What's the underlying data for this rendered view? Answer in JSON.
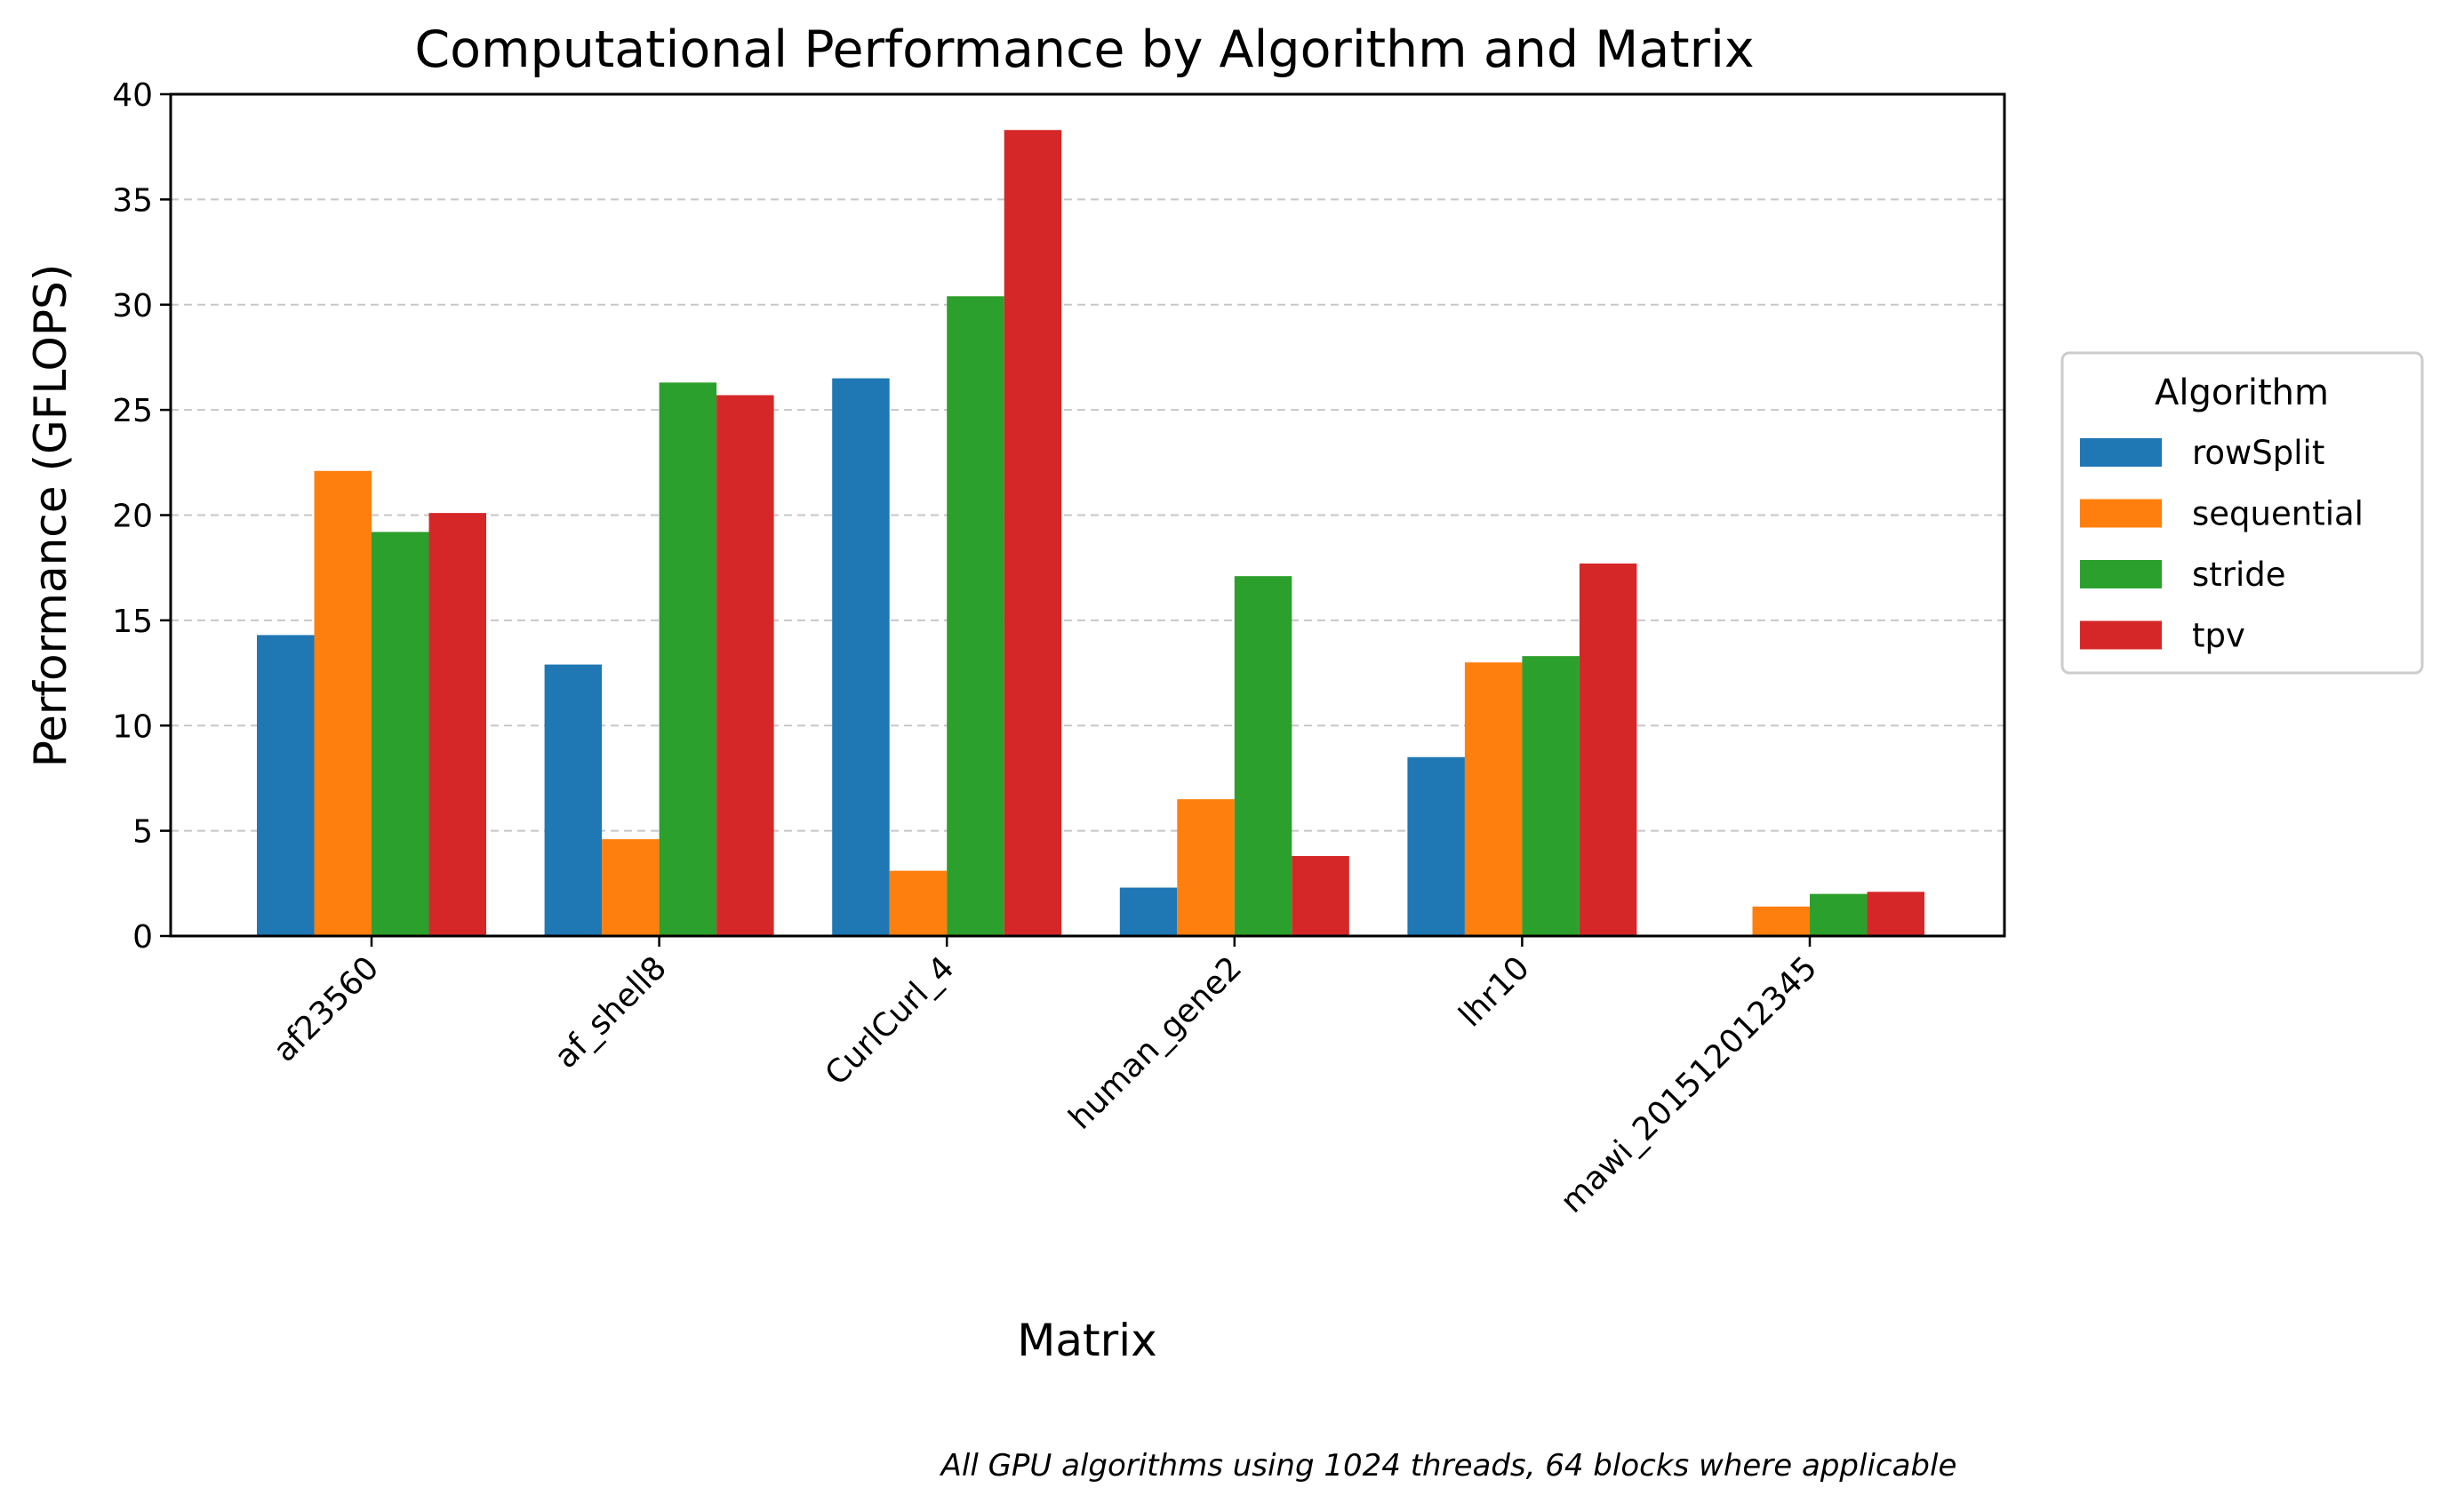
{
  "chart_data": {
    "type": "bar",
    "title": "Computational Performance by Algorithm and Matrix",
    "xlabel": "Matrix",
    "ylabel": "Performance (GFLOPS)",
    "categories": [
      "af23560",
      "af_shell8",
      "CurlCurl_4",
      "human_gene2",
      "lhr10",
      "mawi_201512012345"
    ],
    "series": [
      {
        "name": "rowSplit",
        "color": "#1f77b4",
        "values": [
          14.3,
          12.9,
          26.5,
          2.3,
          8.5,
          0.0
        ]
      },
      {
        "name": "sequential",
        "color": "#ff7f0e",
        "values": [
          22.1,
          4.6,
          3.1,
          6.5,
          13.0,
          1.4
        ]
      },
      {
        "name": "stride",
        "color": "#2ca02c",
        "values": [
          19.2,
          26.3,
          30.4,
          17.1,
          13.3,
          2.0
        ]
      },
      {
        "name": "tpv",
        "color": "#d62728",
        "values": [
          20.1,
          25.7,
          38.3,
          3.8,
          17.7,
          2.1
        ]
      }
    ],
    "ylim": [
      0,
      40
    ],
    "yticks": [
      0,
      5,
      10,
      15,
      20,
      25,
      30,
      35,
      40
    ],
    "grid": "y-dashed",
    "legend": {
      "title": "Algorithm",
      "placement": "right-outside"
    },
    "footnote": "All GPU algorithms using 1024 threads, 64 blocks where applicable"
  }
}
